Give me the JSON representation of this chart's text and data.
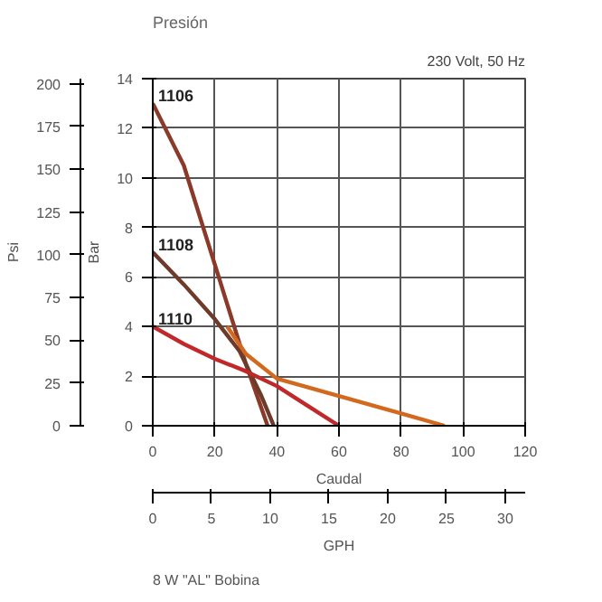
{
  "chart_data": {
    "type": "line",
    "title": "Presión",
    "xlabel": "Caudal",
    "ylabel": "Bar",
    "y2label": "Psi",
    "x2label": "GPH",
    "annotations": [
      "230 Volt, 50 Hz",
      "8 W \"AL\" Bobina"
    ],
    "series": [
      {
        "name": "1106",
        "color": "#8b3a2a",
        "x": [
          0,
          10,
          20,
          30,
          37
        ],
        "values": [
          13,
          10.5,
          6.5,
          2.5,
          0
        ]
      },
      {
        "name": "1108",
        "color": "#6e3b2a",
        "x": [
          0,
          10,
          20,
          28,
          35,
          39
        ],
        "values": [
          7,
          5.7,
          4.3,
          3,
          1.2,
          0
        ]
      },
      {
        "name": "1110",
        "color": "#c0282a",
        "x": [
          0,
          10,
          20,
          30,
          40,
          50,
          60
        ],
        "values": [
          4,
          3.3,
          2.7,
          2.2,
          1.6,
          0.8,
          0
        ]
      },
      {
        "color": "#d2691e",
        "x": [
          24,
          30,
          40,
          60,
          80,
          94
        ],
        "values": [
          4,
          2.9,
          1.9,
          1.2,
          0.5,
          0
        ]
      }
    ],
    "xlim": [
      0,
      120
    ],
    "xticks": [
      0,
      20,
      40,
      60,
      80,
      100,
      120
    ],
    "ylim": [
      0,
      14
    ],
    "yticks": [
      0,
      2,
      4,
      6,
      8,
      10,
      12,
      14
    ],
    "y2lim": [
      0,
      203
    ],
    "y2ticks": [
      0,
      25,
      50,
      75,
      100,
      125,
      150,
      175,
      200
    ],
    "x2lim": [
      0,
      31.7
    ],
    "x2ticks": [
      0,
      5,
      10,
      15,
      20,
      25,
      30
    ],
    "grid": true,
    "marker": "none",
    "line_style": "solid"
  }
}
